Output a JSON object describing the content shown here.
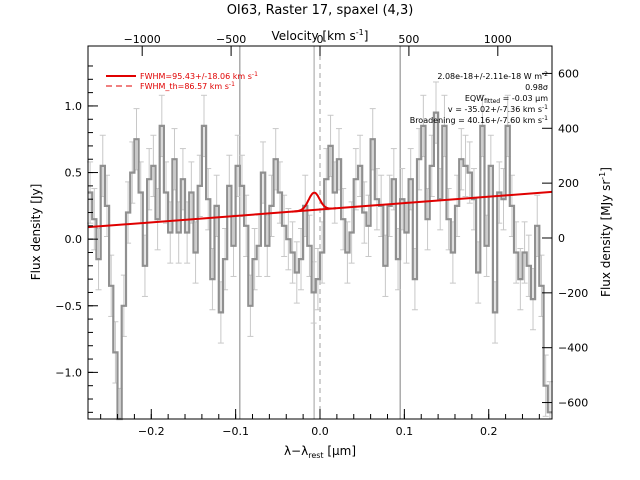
{
  "chart_data": {
    "type": "line",
    "title": "OI63, Raster 17, spaxel (4,3)",
    "xlabel": "λ−λ",
    "xlabel_sub": "rest",
    "xlabel_unit": " [μm]",
    "ylabel_left": "Flux density [Jy]",
    "ylabel_right": "Flux density [MJy sr",
    "ylabel_right_sup": "-1",
    "ylabel_right_end": "]",
    "top_axis_label": "Velocity [km s",
    "top_axis_label_sup": "-1",
    "top_axis_label_end": "]",
    "xlim": [
      -0.275,
      0.275
    ],
    "ylim": [
      -1.35,
      1.45
    ],
    "right_ylim": [
      -660,
      700
    ],
    "x_ticks": [
      -0.2,
      -0.1,
      0.0,
      0.1,
      0.2
    ],
    "x_tick_labels": [
      "−0.2",
      "−0.1",
      "0.0",
      "0.1",
      "0.2"
    ],
    "y_ticks": [
      -1.0,
      -0.5,
      0.0,
      0.5,
      1.0
    ],
    "y_tick_labels": [
      "−1.0",
      "−0.5",
      "0.0",
      "0.5",
      "1.0"
    ],
    "right_ticks": [
      -600,
      -400,
      -200,
      0,
      200,
      400,
      600
    ],
    "right_tick_labels": [
      "−600",
      "−400",
      "−200",
      "0",
      "200",
      "400",
      "600"
    ],
    "top_ticks": [
      -1000,
      -500,
      0,
      500,
      1000
    ],
    "top_tick_labels": [
      "−1000",
      "−500",
      "0",
      "500",
      "1000"
    ],
    "vertical_lines_solid": [
      -0.095,
      0.095
    ],
    "vertical_lines_dashed": [
      0.0
    ],
    "vertical_line_at_fit": [
      -0.007
    ],
    "spectrum": {
      "color": "#909090",
      "x": [
        -0.275,
        -0.27,
        -0.265,
        -0.26,
        -0.255,
        -0.25,
        -0.245,
        -0.24,
        -0.235,
        -0.23,
        -0.225,
        -0.22,
        -0.215,
        -0.21,
        -0.205,
        -0.2,
        -0.195,
        -0.19,
        -0.185,
        -0.18,
        -0.175,
        -0.17,
        -0.165,
        -0.16,
        -0.155,
        -0.15,
        -0.145,
        -0.14,
        -0.135,
        -0.13,
        -0.125,
        -0.12,
        -0.115,
        -0.11,
        -0.105,
        -0.1,
        -0.095,
        -0.09,
        -0.085,
        -0.08,
        -0.075,
        -0.07,
        -0.065,
        -0.06,
        -0.055,
        -0.05,
        -0.045,
        -0.04,
        -0.035,
        -0.03,
        -0.025,
        -0.02,
        -0.015,
        -0.01,
        -0.005,
        0.0,
        0.005,
        0.01,
        0.015,
        0.02,
        0.025,
        0.03,
        0.035,
        0.04,
        0.045,
        0.05,
        0.055,
        0.06,
        0.065,
        0.07,
        0.075,
        0.08,
        0.085,
        0.09,
        0.095,
        0.1,
        0.105,
        0.11,
        0.115,
        0.12,
        0.125,
        0.13,
        0.135,
        0.14,
        0.145,
        0.15,
        0.155,
        0.16,
        0.165,
        0.17,
        0.175,
        0.18,
        0.185,
        0.19,
        0.195,
        0.2,
        0.205,
        0.21,
        0.215,
        0.22,
        0.225,
        0.23,
        0.235,
        0.24,
        0.245,
        0.25,
        0.255,
        0.26,
        0.265,
        0.27
      ],
      "y": [
        0.35,
        0.15,
        -0.15,
        0.55,
        0.25,
        -0.35,
        -0.85,
        -1.35,
        -0.5,
        0.2,
        0.5,
        0.75,
        0.35,
        -0.2,
        0.45,
        0.55,
        0.15,
        0.85,
        0.35,
        0.05,
        0.6,
        0.05,
        0.45,
        0.05,
        0.35,
        -0.1,
        0.4,
        0.85,
        0.3,
        -0.3,
        0.25,
        -0.55,
        -0.15,
        0.4,
        -0.05,
        0.55,
        0.4,
        0.1,
        -0.5,
        -0.15,
        -0.05,
        0.5,
        -0.05,
        0.25,
        0.6,
        0.35,
        0.1,
        0.0,
        -0.1,
        -0.25,
        -0.15,
        0.25,
        -0.05,
        -0.4,
        -0.3,
        -0.1,
        0.45,
        0.7,
        0.35,
        0.6,
        0.15,
        -0.1,
        0.05,
        0.45,
        0.55,
        0.2,
        0.1,
        0.75,
        0.3,
        0.25,
        -0.2,
        0.25,
        0.45,
        -0.15,
        0.3,
        0.05,
        0.45,
        -0.3,
        0.6,
        0.85,
        0.15,
        0.55,
        0.95,
        0.3,
        0.85,
        0.15,
        -0.1,
        0.25,
        0.6,
        0.55,
        0.5,
        0.3,
        -0.25,
        0.85,
        -0.05,
        0.55,
        -0.55,
        0.35,
        0.3,
        0.85,
        0.25,
        -0.1,
        -0.3,
        -0.1,
        -0.2,
        -0.45,
        0.1,
        -0.35,
        -1.1,
        -1.3
      ],
      "err": 0.23
    },
    "fit": {
      "color": "#e00000",
      "continuum_start": [
        -0.275,
        0.09
      ],
      "continuum_end": [
        0.275,
        0.355
      ],
      "gauss_center": -0.007,
      "gauss_amp": 0.13,
      "gauss_sigma": 0.0065
    },
    "legend": {
      "solid_label": "FWHM=95.43+/-18.06 km s",
      "solid_sup": "-1",
      "dashed_label": "FWHM_th=86.57 km s",
      "dashed_sup": "-1"
    },
    "annotations": {
      "line1": "2.08e-18+/-2.11e-18 W m",
      "line1_sup": "-2",
      "line2": "0.98σ",
      "line3_pre": "EQW",
      "line3_sub": "fitted",
      "line3_post": " = -0.03 μm",
      "line4": "v = -35.02+/-7.36 km s",
      "line4_sup": "-1",
      "line5": "Broadening = 40.16+/-7.60 km s",
      "line5_sup": "-1"
    }
  }
}
